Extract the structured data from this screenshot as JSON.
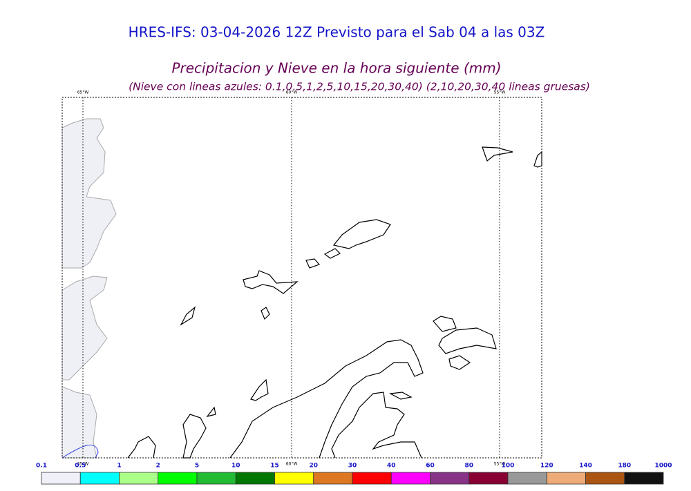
{
  "header": {
    "title": "HRES-IFS: 03-04-2026 12Z Previsto para el Sab 04 a las 03Z",
    "subtitle": "Precipitacion y Nieve en la hora siguiente (mm)",
    "note": "(Nieve con lineas azules: 0.1,0.5,1,2,5,10,15,20,30,40)  (2,10,20,30,40 lineas gruesas)"
  },
  "map": {
    "meridians": [
      "65°W",
      "60°W",
      "55°W"
    ]
  },
  "legend": {
    "labels": [
      0.1,
      0.5,
      1,
      2,
      5,
      10,
      15,
      20,
      30,
      40,
      60,
      80,
      100,
      120,
      140,
      180,
      1000
    ],
    "colors": [
      "#f0f0f8",
      "#00ffff",
      "#aaff88",
      "#00ff00",
      "#22bb33",
      "#007700",
      "#ffff00",
      "#dd7722",
      "#ff0000",
      "#ff00ff",
      "#883388",
      "#880033",
      "#999999",
      "#eeaa77",
      "#aa5511",
      "#111111"
    ]
  }
}
